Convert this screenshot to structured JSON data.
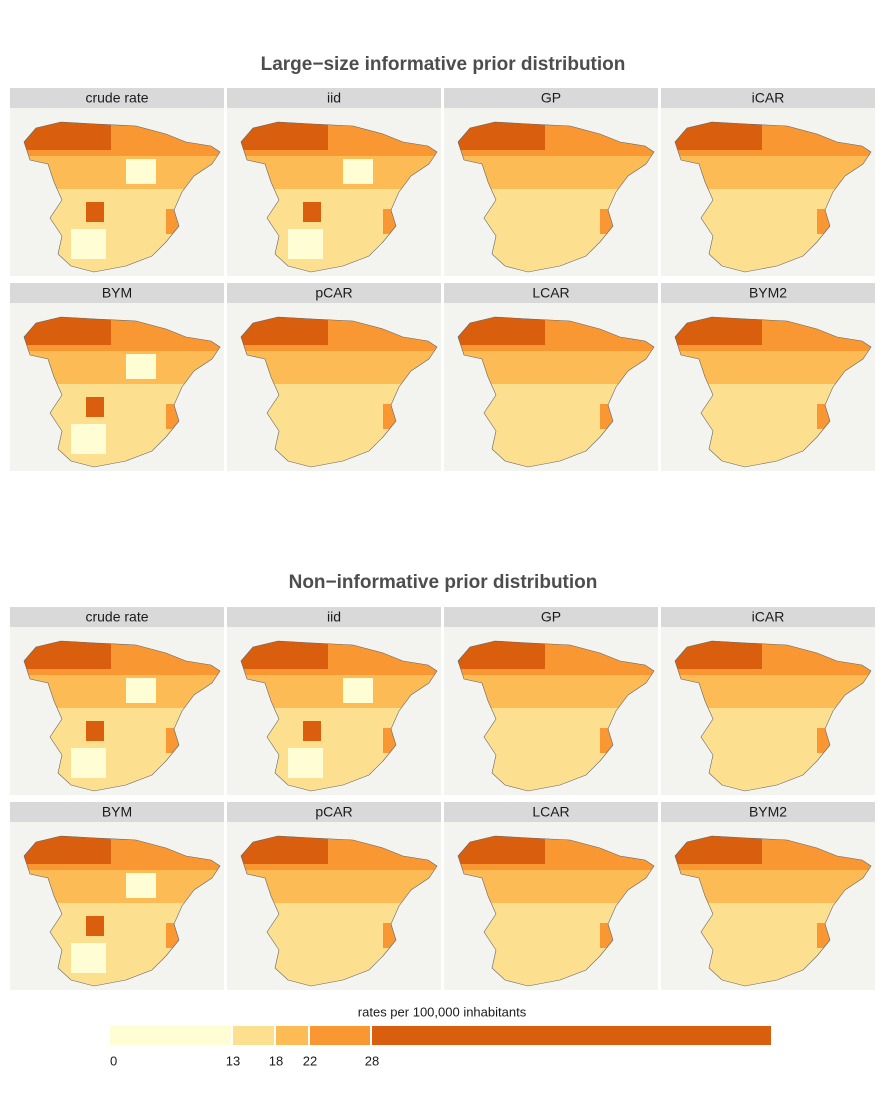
{
  "sections": [
    {
      "title": "Large−size informative prior distribution",
      "panels": [
        "crude rate",
        "iid",
        "GP",
        "iCAR",
        "BYM",
        "pCAR",
        "LCAR",
        "BYM2"
      ]
    },
    {
      "title": "Non−informative prior distribution",
      "panels": [
        "crude rate",
        "iid",
        "GP",
        "iCAR",
        "BYM",
        "pCAR",
        "LCAR",
        "BYM2"
      ]
    }
  ],
  "legend": {
    "title": "rates per 100,000 inhabitants",
    "breaks": [
      0,
      13,
      18,
      22,
      28
    ],
    "colors": [
      "#fefdd4",
      "#fddf90",
      "#fcbb55",
      "#f99833",
      "#d95f0e"
    ]
  }
}
